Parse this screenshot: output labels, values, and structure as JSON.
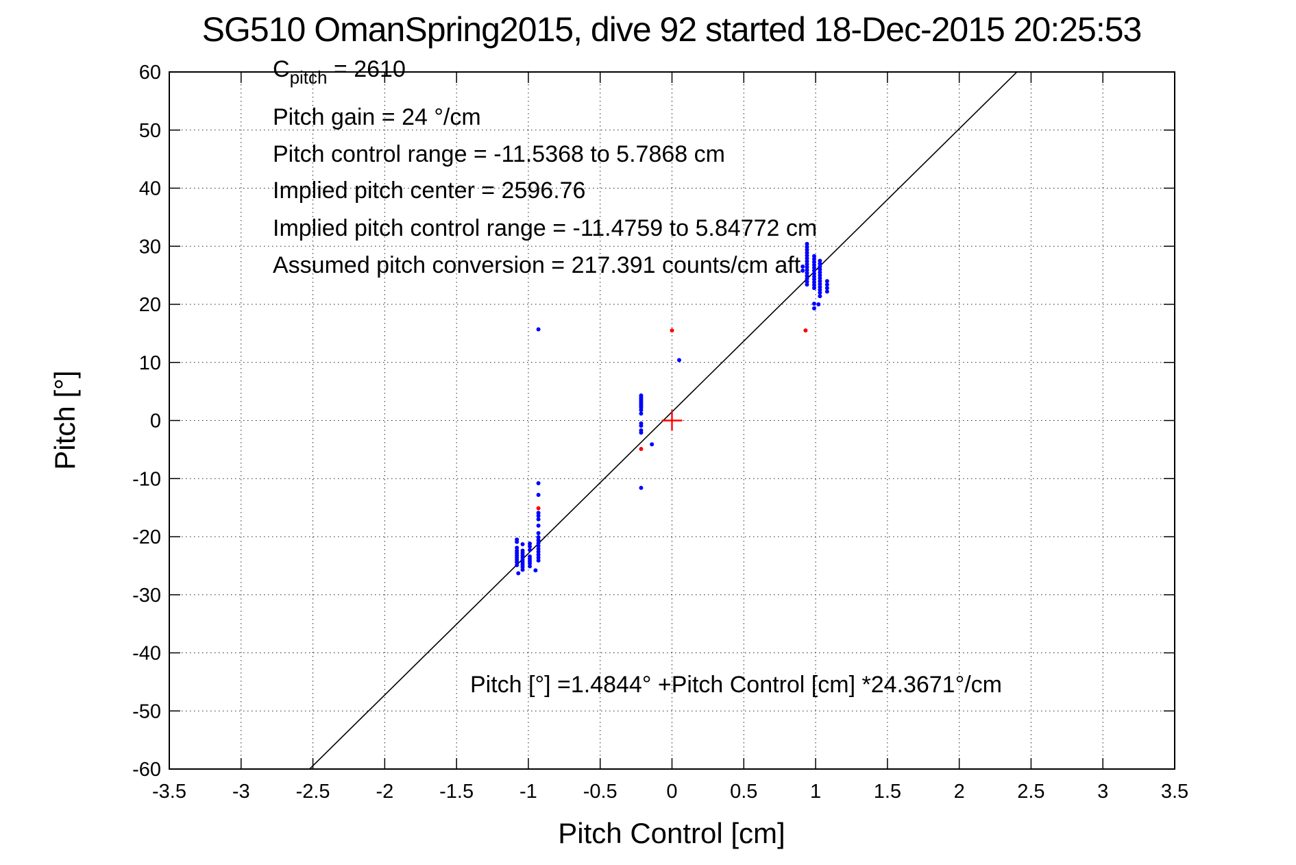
{
  "title": "SG510 OmanSpring2015, dive 92 started 18-Dec-2015 20:25:53",
  "annotations": {
    "c_pitch": {
      "base": "C",
      "sub": "pitch",
      "rest": " = 2610"
    },
    "lines": [
      "Pitch gain = 24 °/cm",
      "Pitch control range = -11.5368 to 5.7868 cm",
      "Implied pitch center = 2596.76",
      "Implied pitch control range = -11.4759 to 5.84772 cm",
      "Assumed pitch conversion = 217.391 counts/cm aft"
    ],
    "equation": "Pitch [°] =1.4844° +Pitch Control [cm] *24.3671°/cm"
  },
  "chart_data": {
    "type": "scatter",
    "title": "SG510 OmanSpring2015, dive 92 started 18-Dec-2015 20:25:53",
    "xlabel": "Pitch Control [cm]",
    "ylabel": "Pitch [°]",
    "xlim": [
      -3.5,
      3.5
    ],
    "ylim": [
      -60,
      60
    ],
    "grid": true,
    "legend": "none",
    "xticks": [
      -3.5,
      -3,
      -2.5,
      -2,
      -1.5,
      -1,
      -0.5,
      0,
      0.5,
      1,
      1.5,
      2,
      2.5,
      3,
      3.5
    ],
    "xtick_labels": [
      "-3.5",
      "-3",
      "-2.5",
      "-2",
      "-1.5",
      "-1",
      "-0.5",
      "0",
      "0.5",
      "1",
      "1.5",
      "2",
      "2.5",
      "3",
      "3.5"
    ],
    "yticks": [
      -60,
      -50,
      -40,
      -30,
      -20,
      -10,
      0,
      10,
      20,
      30,
      40,
      50,
      60
    ],
    "ytick_labels": [
      "-60",
      "-50",
      "-40",
      "-30",
      "-20",
      "-10",
      "0",
      "10",
      "20",
      "30",
      "40",
      "50",
      "60"
    ],
    "fit_line": {
      "intercept": 1.4844,
      "slope": 24.3671,
      "x_start": -2.523,
      "x_end": 2.401,
      "color": "#000000"
    },
    "colors": {
      "observed": "#0000ff",
      "flagged": "#ff0000",
      "axis": "#000000",
      "grid": "#222222",
      "background": "#ffffff"
    },
    "series": [
      {
        "name": "observed-pitch",
        "color": "#0000ff",
        "marker": "point",
        "points": [
          [
            -1.08,
            -20.5
          ],
          [
            -1.08,
            -20.9
          ],
          [
            -1.08,
            -21.9
          ],
          [
            -1.08,
            -22.4
          ],
          [
            -1.08,
            -22.8
          ],
          [
            -1.08,
            -23.2
          ],
          [
            -1.08,
            -23.6
          ],
          [
            -1.08,
            -24.0
          ],
          [
            -1.08,
            -24.4
          ],
          [
            -1.08,
            -24.9
          ],
          [
            -1.04,
            -21.3
          ],
          [
            -1.04,
            -22.4
          ],
          [
            -1.04,
            -22.8
          ],
          [
            -1.04,
            -23.2
          ],
          [
            -1.04,
            -23.6
          ],
          [
            -1.04,
            -24.0
          ],
          [
            -1.04,
            -24.4
          ],
          [
            -1.04,
            -24.8
          ],
          [
            -1.04,
            -25.2
          ],
          [
            -1.04,
            -25.7
          ],
          [
            -0.99,
            -21.2
          ],
          [
            -0.99,
            -21.7
          ],
          [
            -0.99,
            -22.3
          ],
          [
            -0.99,
            -23.4
          ],
          [
            -0.99,
            -23.8
          ],
          [
            -0.99,
            -24.2
          ],
          [
            -0.99,
            -24.6
          ],
          [
            -0.99,
            -25.1
          ],
          [
            -0.93,
            -10.8
          ],
          [
            -0.93,
            -12.8
          ],
          [
            -0.93,
            -15.9
          ],
          [
            -0.93,
            -16.4
          ],
          [
            -0.93,
            -17.0
          ],
          [
            -0.93,
            -18.1
          ],
          [
            -0.93,
            -19.4
          ],
          [
            -0.93,
            -20.1
          ],
          [
            -0.93,
            -20.6
          ],
          [
            -0.93,
            -21.1
          ],
          [
            -0.93,
            -21.6
          ],
          [
            -0.93,
            -22.1
          ],
          [
            -0.93,
            -22.6
          ],
          [
            -0.93,
            -23.1
          ],
          [
            -0.93,
            -23.6
          ],
          [
            -0.93,
            -24.1
          ],
          [
            -1.07,
            -26.3
          ],
          [
            -0.95,
            -25.8
          ],
          [
            -0.215,
            4.3
          ],
          [
            -0.215,
            4.0
          ],
          [
            -0.215,
            3.7
          ],
          [
            -0.215,
            3.4
          ],
          [
            -0.215,
            3.1
          ],
          [
            -0.215,
            2.8
          ],
          [
            -0.215,
            2.5
          ],
          [
            -0.215,
            2.2
          ],
          [
            -0.215,
            1.8
          ],
          [
            -0.215,
            1.2
          ],
          [
            -0.215,
            -0.5
          ],
          [
            -0.215,
            -0.9
          ],
          [
            -0.215,
            -1.7
          ],
          [
            -0.215,
            -2.1
          ],
          [
            -0.14,
            -4.1
          ],
          [
            -0.215,
            -11.6
          ],
          [
            0.05,
            10.4
          ],
          [
            -0.93,
            15.7
          ],
          [
            0.94,
            30.4
          ],
          [
            0.94,
            29.9
          ],
          [
            0.94,
            29.4
          ],
          [
            0.94,
            28.9
          ],
          [
            0.94,
            28.4
          ],
          [
            0.94,
            27.9
          ],
          [
            0.94,
            27.4
          ],
          [
            0.94,
            26.9
          ],
          [
            0.94,
            26.4
          ],
          [
            0.94,
            25.9
          ],
          [
            0.94,
            25.4
          ],
          [
            0.94,
            24.9
          ],
          [
            0.94,
            24.4
          ],
          [
            0.94,
            23.9
          ],
          [
            0.94,
            23.4
          ],
          [
            0.99,
            28.3
          ],
          [
            0.99,
            27.8
          ],
          [
            0.99,
            27.3
          ],
          [
            0.99,
            26.8
          ],
          [
            0.99,
            26.3
          ],
          [
            0.99,
            25.8
          ],
          [
            0.99,
            25.3
          ],
          [
            0.99,
            24.8
          ],
          [
            0.99,
            24.3
          ],
          [
            0.99,
            23.8
          ],
          [
            0.99,
            23.3
          ],
          [
            0.99,
            22.8
          ],
          [
            0.99,
            20.1
          ],
          [
            0.99,
            19.3
          ],
          [
            1.03,
            27.5
          ],
          [
            1.03,
            27.0
          ],
          [
            1.03,
            26.5
          ],
          [
            1.03,
            26.0
          ],
          [
            1.03,
            25.5
          ],
          [
            1.03,
            25.0
          ],
          [
            1.03,
            24.5
          ],
          [
            1.03,
            24.0
          ],
          [
            1.03,
            23.5
          ],
          [
            1.03,
            23.0
          ],
          [
            1.03,
            22.5
          ],
          [
            1.03,
            22.0
          ],
          [
            1.03,
            21.4
          ],
          [
            1.08,
            24.0
          ],
          [
            1.08,
            23.4
          ],
          [
            1.08,
            22.8
          ],
          [
            1.08,
            22.2
          ],
          [
            1.02,
            20.0
          ],
          [
            0.91,
            26.5
          ],
          [
            0.91,
            25.8
          ]
        ]
      },
      {
        "name": "flagged-pitch",
        "color": "#ff0000",
        "marker": "point",
        "points": [
          [
            0,
            15.5
          ],
          [
            0.93,
            15.5
          ],
          [
            -0.93,
            -15.1
          ],
          [
            -0.215,
            -4.9
          ]
        ]
      },
      {
        "name": "implied-center-cross",
        "color": "#ff0000",
        "marker": "plus",
        "points": [
          [
            0,
            0
          ]
        ]
      }
    ]
  }
}
